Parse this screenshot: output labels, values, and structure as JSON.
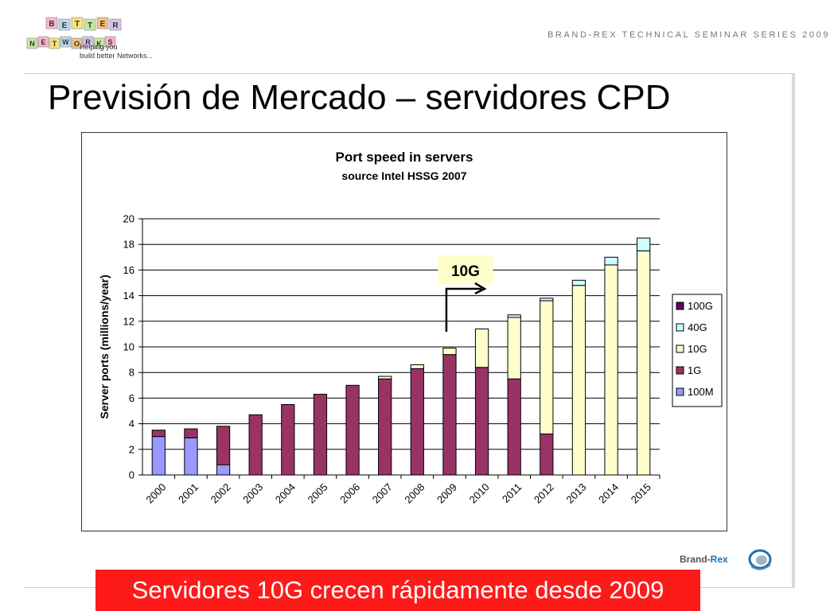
{
  "header": {
    "logo_letters_top": [
      "B",
      "E",
      "T",
      "T",
      "E",
      "R"
    ],
    "logo_letters_bottom": [
      "N",
      "E",
      "T",
      "W",
      "O",
      "R",
      "K",
      "S"
    ],
    "tagline_line1": "Helping you",
    "tagline_line2": "build better Networks...",
    "series": "BRAND-REX TECHNICAL SEMINAR SERIES 2009"
  },
  "slide": {
    "title": "Previsión de Mercado – servidores CPD",
    "banner": "Servidores 10G crecen rápidamente desde 2009"
  },
  "footer": {
    "brand_name": "Brand-",
    "brand_accent": "Rex"
  },
  "colors": {
    "100M": "#9999ff",
    "1G": "#993366",
    "10G": "#ffffcc",
    "40G": "#ccffff",
    "100G": "#660066",
    "banner": "#ff1a1a"
  },
  "chart_data": {
    "type": "bar",
    "stacked": true,
    "title": "Port speed in servers",
    "subtitle": "source Intel HSSG 2007",
    "xlabel": "",
    "ylabel": "Server ports (millions/year)",
    "ylim": [
      0,
      20
    ],
    "yticks": [
      0,
      2,
      4,
      6,
      8,
      10,
      12,
      14,
      16,
      18,
      20
    ],
    "grid": true,
    "legend_position": "right",
    "categories": [
      "2000",
      "2001",
      "2002",
      "2003",
      "2004",
      "2005",
      "2006",
      "2007",
      "2008",
      "2009",
      "2010",
      "2011",
      "2012",
      "2013",
      "2014",
      "2015"
    ],
    "series": [
      {
        "name": "100M",
        "values": [
          3.0,
          2.9,
          0.8,
          0,
          0,
          0,
          0,
          0,
          0,
          0,
          0,
          0,
          0,
          0,
          0,
          0
        ]
      },
      {
        "name": "1G",
        "values": [
          0.5,
          0.7,
          3.0,
          4.7,
          5.5,
          6.3,
          7.0,
          7.5,
          8.3,
          9.4,
          8.4,
          7.5,
          3.2,
          0,
          0,
          0
        ]
      },
      {
        "name": "10G",
        "values": [
          0,
          0,
          0,
          0,
          0,
          0,
          0,
          0.2,
          0.3,
          0.5,
          3.0,
          4.8,
          10.4,
          14.8,
          16.4,
          17.5
        ]
      },
      {
        "name": "40G",
        "values": [
          0,
          0,
          0,
          0,
          0,
          0,
          0,
          0,
          0,
          0,
          0,
          0.2,
          0.2,
          0.4,
          0.6,
          1.0
        ]
      },
      {
        "name": "100G",
        "values": [
          0,
          0,
          0,
          0,
          0,
          0,
          0,
          0,
          0,
          0,
          0,
          0,
          0,
          0,
          0,
          0
        ]
      }
    ],
    "legend_order": [
      "100G",
      "40G",
      "10G",
      "1G",
      "100M"
    ],
    "annotation": {
      "text": "10G",
      "category": "2009"
    }
  }
}
